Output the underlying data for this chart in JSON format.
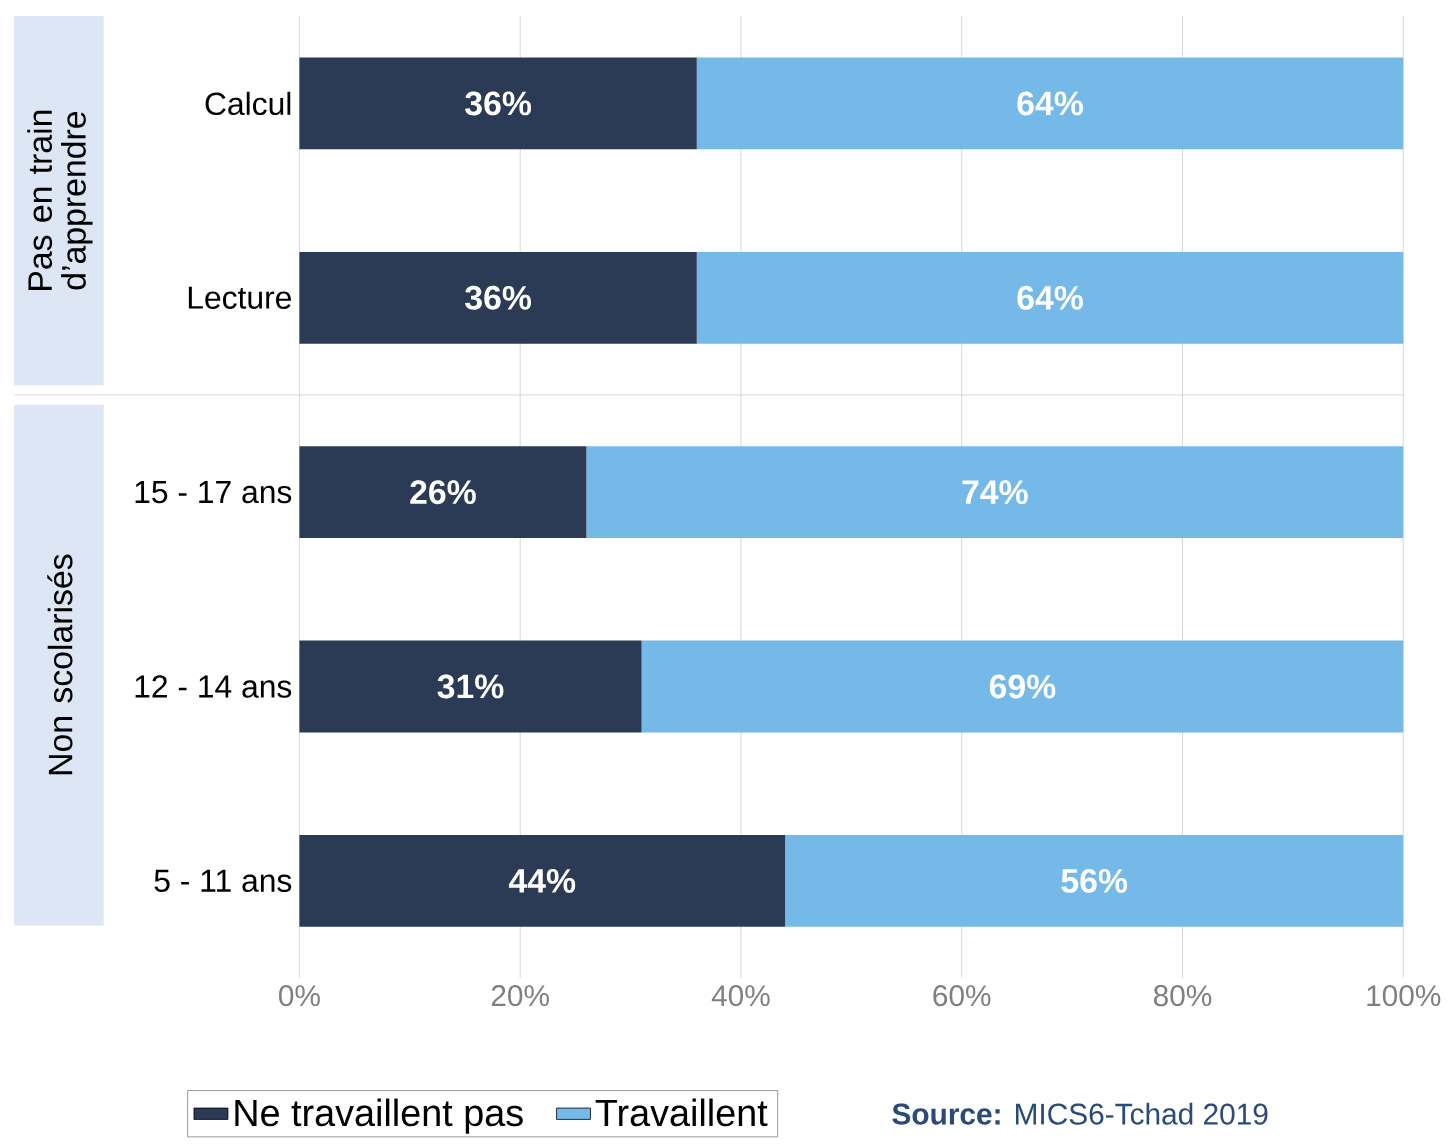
{
  "chart_data": {
    "type": "bar",
    "orientation": "horizontal",
    "stacked": true,
    "categories": [
      "Calcul",
      "Lecture",
      "15 - 17 ans",
      "12 - 14 ans",
      "5 - 11 ans"
    ],
    "series": [
      {
        "name": "Ne travaillent pas",
        "color": "#2b3a55",
        "values": [
          36,
          36,
          26,
          31,
          44
        ],
        "value_labels": [
          "36%",
          "36%",
          "26%",
          "31%",
          "44%"
        ]
      },
      {
        "name": "Travaillent",
        "color": "#74b9e7",
        "values": [
          64,
          64,
          74,
          69,
          56
        ],
        "value_labels": [
          "64%",
          "64%",
          "74%",
          "69%",
          "56%"
        ]
      }
    ],
    "xlim": [
      0,
      100
    ],
    "xticks": [
      {
        "value": 0,
        "label": "0%"
      },
      {
        "value": 20,
        "label": "20%"
      },
      {
        "value": 40,
        "label": "40%"
      },
      {
        "value": 60,
        "label": "60%"
      },
      {
        "value": 80,
        "label": "80%"
      },
      {
        "value": 100,
        "label": "100%"
      }
    ],
    "grid": "x",
    "legend": "bottom",
    "annotations": [
      "Pas en train d’apprendre",
      "Non scolarisés",
      "**Source:** MICS6-Tchad 2019"
    ]
  }
}
